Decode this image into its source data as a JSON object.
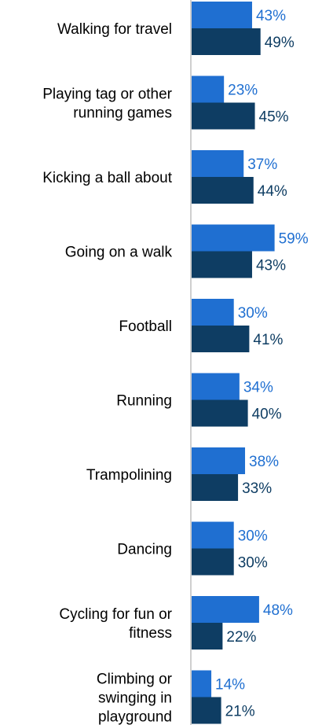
{
  "chart_data": {
    "type": "bar",
    "orientation": "horizontal",
    "categories": [
      [
        "Walking for travel"
      ],
      [
        "Playing tag or other",
        "running games"
      ],
      [
        "Kicking a ball about"
      ],
      [
        "Going on a walk"
      ],
      [
        "Football"
      ],
      [
        "Running"
      ],
      [
        "Trampolining"
      ],
      [
        "Dancing"
      ],
      [
        "Cycling for fun or",
        "fitness"
      ],
      [
        "Climbing or",
        "swinging in",
        "playground"
      ]
    ],
    "series": [
      {
        "color": "#1f6fd1",
        "values": [
          43,
          23,
          37,
          59,
          30,
          34,
          38,
          30,
          48,
          14
        ]
      },
      {
        "color": "#0e3d63",
        "values": [
          49,
          45,
          44,
          43,
          41,
          40,
          33,
          30,
          22,
          21
        ]
      }
    ],
    "value_suffix": "%",
    "xlim": [
      0,
      100
    ],
    "axis_color": "#bfbfbf",
    "grid": false,
    "legend": "none"
  }
}
